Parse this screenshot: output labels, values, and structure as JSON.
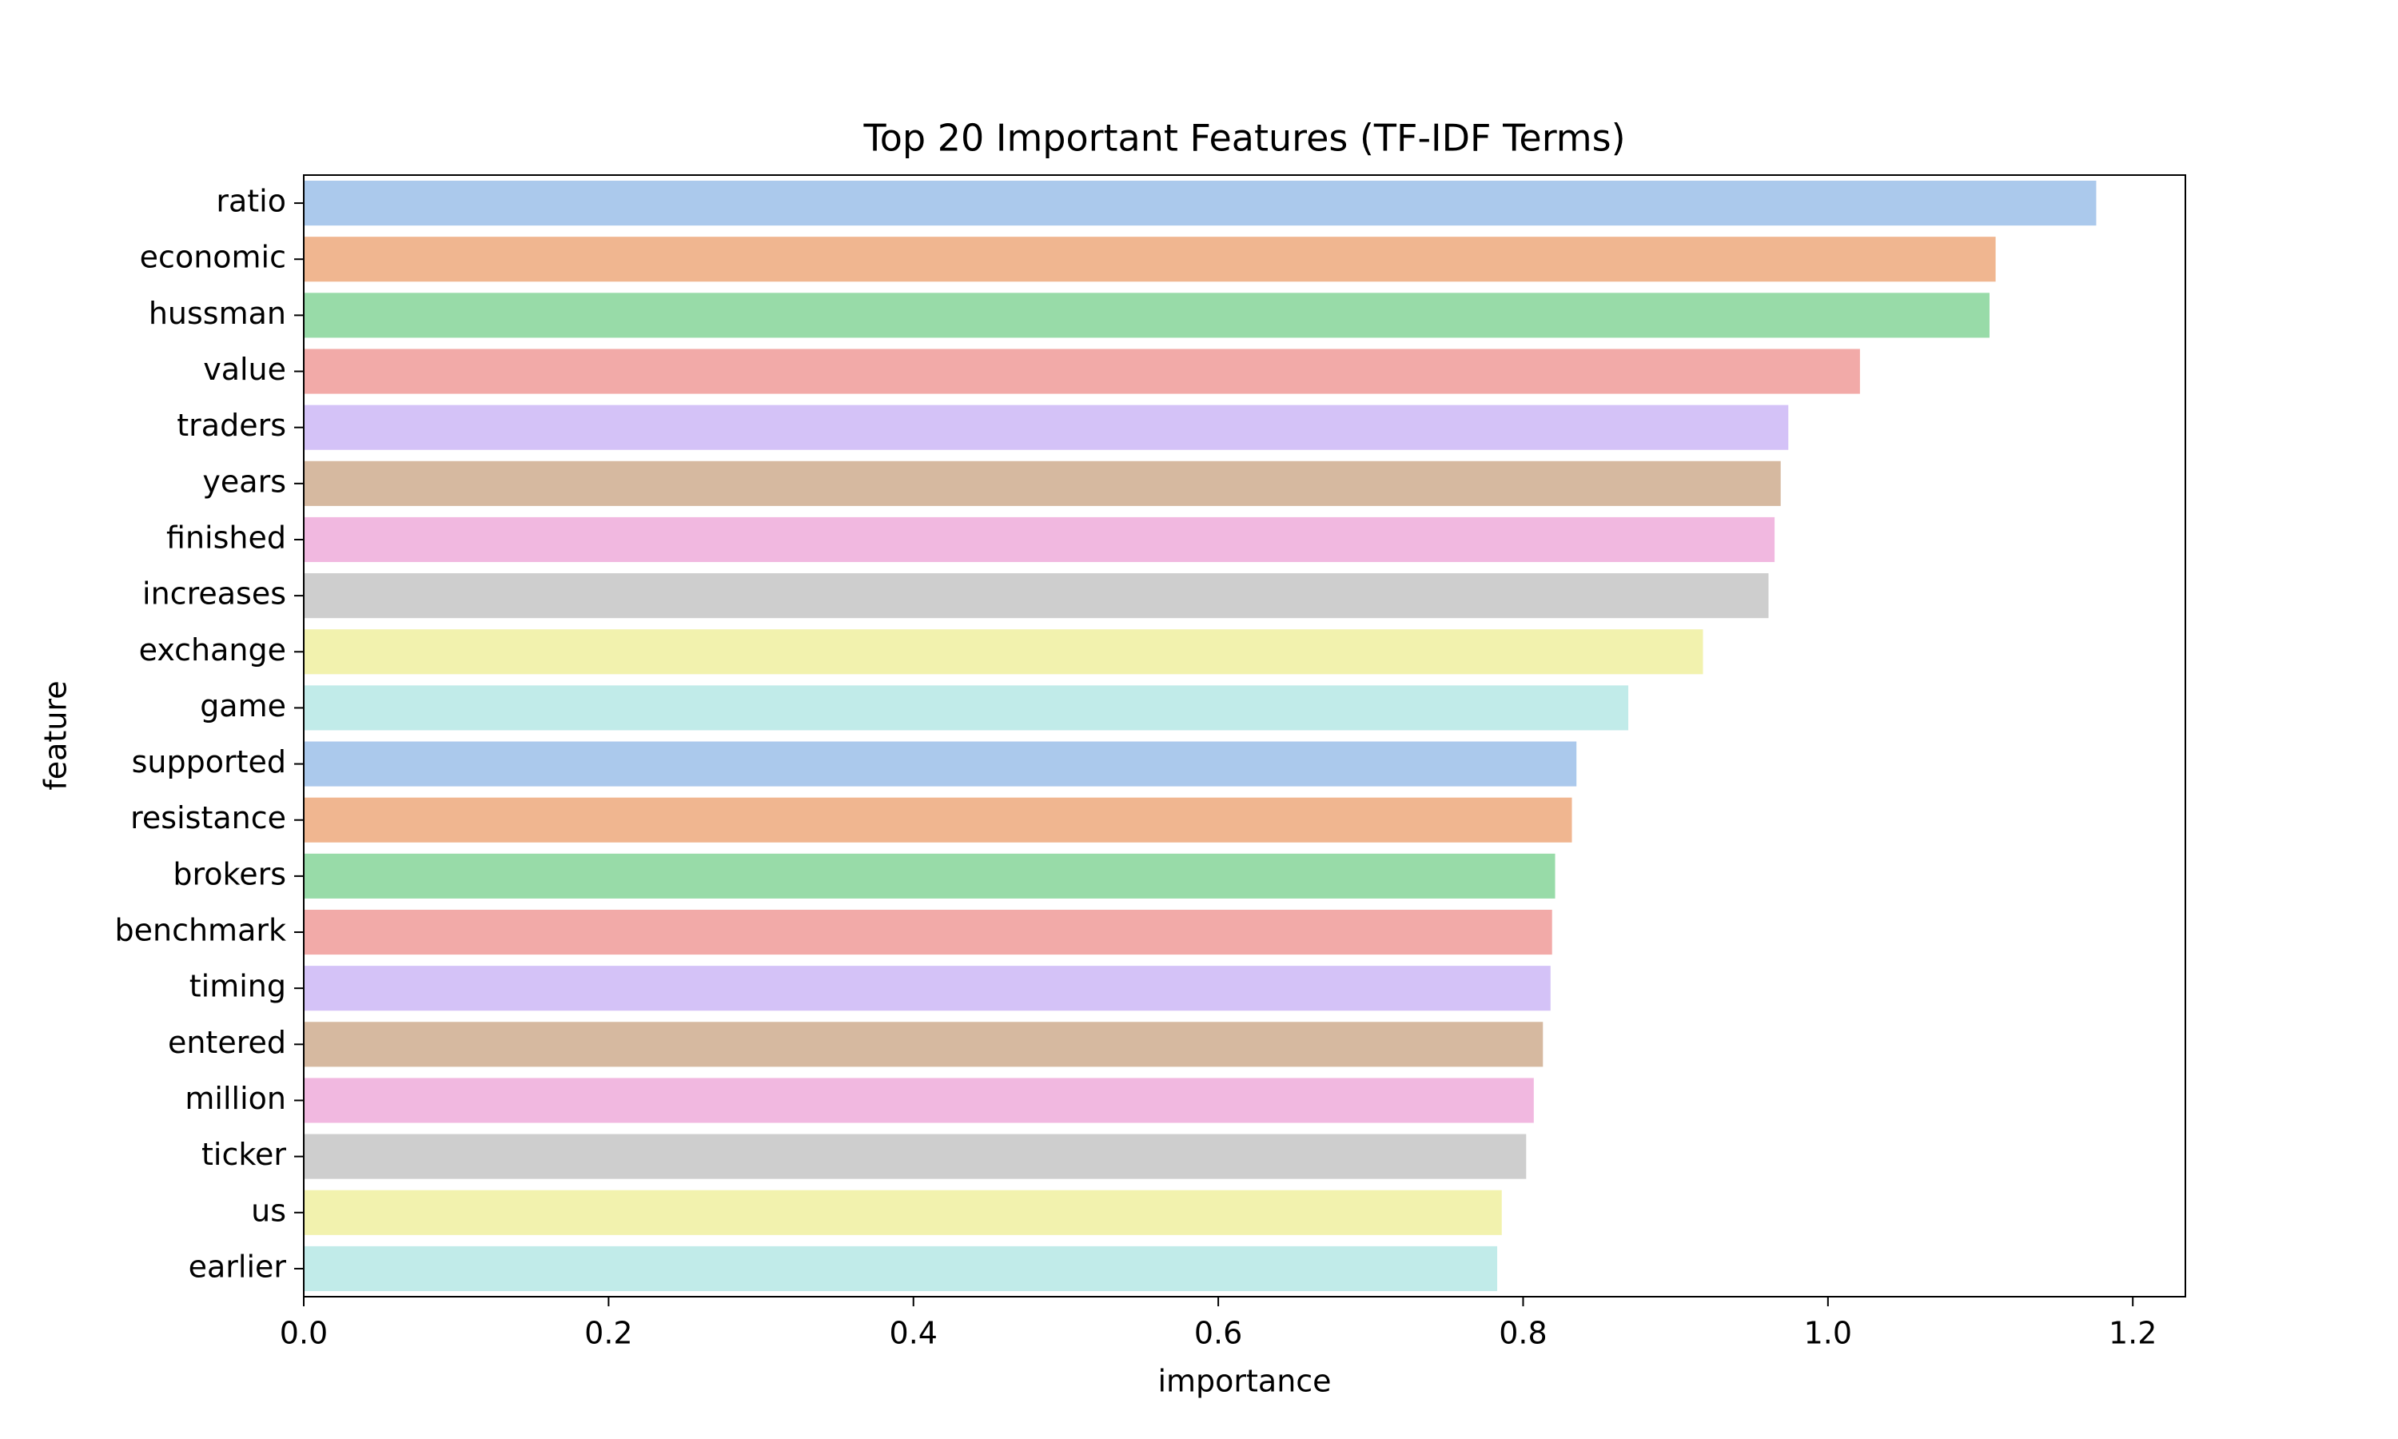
{
  "chart_data": {
    "type": "barh",
    "title": "Top 20 Important Features (TF-IDF Terms)",
    "xlabel": "importance",
    "ylabel": "feature",
    "categories": [
      "ratio",
      "economic",
      "hussman",
      "value",
      "traders",
      "years",
      "finished",
      "increases",
      "exchange",
      "game",
      "supported",
      "resistance",
      "brokers",
      "benchmark",
      "timing",
      "entered",
      "million",
      "ticker",
      "us",
      "earlier"
    ],
    "values": [
      1.176,
      1.11,
      1.106,
      1.021,
      0.974,
      0.969,
      0.965,
      0.961,
      0.918,
      0.869,
      0.835,
      0.832,
      0.821,
      0.819,
      0.818,
      0.813,
      0.807,
      0.802,
      0.786,
      0.783
    ],
    "colors": [
      "#abc9ec",
      "#f0b690",
      "#98dba8",
      "#f2aaa8",
      "#d4c2f7",
      "#d6b9a0",
      "#f1b8e0",
      "#cecece",
      "#f2f2ae",
      "#c1ebe9",
      "#abc9ec",
      "#f0b690",
      "#98dba8",
      "#f2aaa8",
      "#d4c2f7",
      "#d6b9a0",
      "#f1b8e0",
      "#cecece",
      "#f2f2ae",
      "#c1ebe9"
    ],
    "xlim": [
      0,
      1.2345
    ],
    "xticks": [
      {
        "value": 0,
        "label": "0.0"
      },
      0.2,
      0.4,
      0.6,
      0.8,
      {
        "value": 1,
        "label": "1.0"
      },
      1.2
    ]
  }
}
